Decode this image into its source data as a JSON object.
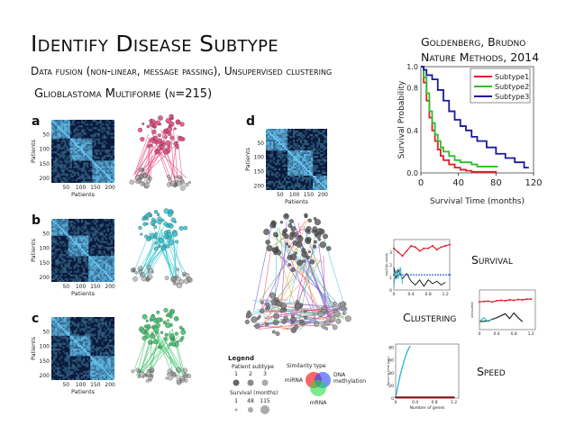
{
  "slide": {
    "title": "Identify Disease Subtype",
    "subtitle": "Data fusion (non-linear, message passing), Unsupervised clustering",
    "dataset": "Glioblastoma Multiforme (n=215)",
    "citation_line1": "Goldenberg, Brudno",
    "citation_line2": "Nature Methods, 2014",
    "label_survival": "Survival",
    "label_clustering": "Clustering",
    "label_speed": "Speed"
  },
  "panels": {
    "a": "a",
    "b": "b",
    "c": "c",
    "d": "d",
    "axis_label": "Patients",
    "yticks": [
      "50",
      "100",
      "150",
      "200"
    ],
    "xticks": [
      "50",
      "100",
      "150",
      "200"
    ]
  },
  "legend": {
    "title": "Legend",
    "patient_subtype": "Patient subtype",
    "subtype_values": [
      "1",
      "2",
      "3"
    ],
    "survival_months": "Survival (months)",
    "survival_values": [
      "1",
      "48",
      "115"
    ],
    "similarity_type": "Similarity type",
    "mirna": "miRNA",
    "dna_methylation_1": "DNA",
    "dna_methylation_2": "methylation",
    "mrna": "mRNA"
  },
  "colors": {
    "subtype1": "#e0202a",
    "subtype2": "#2bbf2b",
    "subtype3": "#1a1a9a",
    "network_a": "#e0457a",
    "network_b": "#2fc4d0",
    "network_c": "#3fc16a",
    "heatmap_bg": "#0b1a3a"
  },
  "chart_data": [
    {
      "type": "line",
      "title": "",
      "xlabel": "Survival Time (months)",
      "ylabel": "Survival Probability",
      "xlim": [
        0,
        120
      ],
      "ylim": [
        0,
        1.0
      ],
      "xticks": [
        "0",
        "40",
        "80",
        "120"
      ],
      "yticks": [
        "0.0",
        "0.4",
        "0.8",
        "1.0"
      ],
      "legend": "top-right",
      "series": [
        {
          "name": "Subtype1",
          "x": [
            0,
            3,
            6,
            9,
            12,
            15,
            18,
            21,
            24,
            30,
            36,
            42,
            48,
            54,
            60,
            70,
            80
          ],
          "y": [
            1.0,
            0.85,
            0.68,
            0.52,
            0.4,
            0.3,
            0.22,
            0.16,
            0.12,
            0.08,
            0.05,
            0.03,
            0.02,
            0.01,
            0.01,
            0.01,
            0.0
          ]
        },
        {
          "name": "Subtype2",
          "x": [
            0,
            3,
            6,
            9,
            12,
            15,
            18,
            21,
            24,
            30,
            36,
            42,
            48,
            54,
            60,
            70,
            82
          ],
          "y": [
            1.0,
            0.9,
            0.75,
            0.58,
            0.47,
            0.36,
            0.3,
            0.24,
            0.2,
            0.16,
            0.12,
            0.1,
            0.1,
            0.08,
            0.06,
            0.06,
            0.06
          ]
        },
        {
          "name": "Subtype3",
          "x": [
            0,
            3,
            6,
            12,
            18,
            24,
            30,
            36,
            42,
            48,
            54,
            60,
            70,
            80,
            90,
            100,
            110,
            115
          ],
          "y": [
            1.0,
            0.97,
            0.92,
            0.88,
            0.78,
            0.68,
            0.58,
            0.5,
            0.44,
            0.4,
            0.34,
            0.3,
            0.24,
            0.18,
            0.14,
            0.1,
            0.05,
            0.05
          ]
        }
      ]
    },
    {
      "type": "line",
      "title": "",
      "ylabel": "-log10(p-value)",
      "xticks": [
        "0",
        "0.4",
        "0.8",
        "1.2"
      ],
      "yticks": [
        "0",
        "1",
        "2",
        "3"
      ],
      "series": [
        {
          "x": [
            0.0,
            0.1,
            0.2,
            0.3,
            0.4,
            0.5,
            0.6,
            0.7,
            0.8,
            0.9,
            1.0,
            1.1,
            1.2,
            1.3
          ],
          "y": [
            3.3,
            3.0,
            2.7,
            3.1,
            3.5,
            3.4,
            3.1,
            3.3,
            3.3,
            3.5,
            3.2,
            3.4,
            3.5,
            3.6
          ]
        },
        {
          "x": [
            0.0,
            0.05,
            0.1,
            0.2,
            0.3,
            0.4,
            0.5,
            0.6,
            0.7,
            0.8,
            0.9,
            1.0,
            1.1,
            1.2
          ],
          "y": [
            1.8,
            0.9,
            1.6,
            0.9,
            1.3,
            0.7,
            0.4,
            0.8,
            0.3,
            0.8,
            0.5,
            0.7,
            0.4,
            0.6
          ]
        },
        {
          "x": [
            0.0,
            1.3
          ],
          "y": [
            1.2,
            1.2
          ]
        },
        {
          "x": [
            0.0,
            0.05,
            0.1,
            0.15,
            0.2
          ],
          "y": [
            0.3,
            1.6,
            0.9,
            1.8,
            0.5
          ]
        }
      ]
    },
    {
      "type": "line",
      "title": "",
      "ylabel": "silhouette",
      "xticks": [
        "0",
        "0.4",
        "0.8",
        "1.2"
      ],
      "series": [
        {
          "x": [
            0.0,
            0.1,
            0.2,
            0.3,
            0.4,
            0.5,
            0.6,
            0.7,
            0.8,
            0.9,
            1.0,
            1.1,
            1.2
          ],
          "y": [
            0.7,
            0.71,
            0.72,
            0.7,
            0.73,
            0.74,
            0.73,
            0.75,
            0.74,
            0.76,
            0.75,
            0.77,
            0.77
          ]
        },
        {
          "x": [
            0.0,
            0.2,
            0.4,
            0.6,
            0.7,
            0.8,
            0.9,
            1.0
          ],
          "y": [
            0.2,
            0.22,
            0.3,
            0.4,
            0.28,
            0.42,
            0.3,
            0.2
          ]
        },
        {
          "x": [
            0.0,
            0.1,
            0.2,
            0.3
          ],
          "y": [
            0.2,
            0.3,
            0.2,
            0.28
          ]
        }
      ]
    },
    {
      "type": "line",
      "title": "",
      "xlabel": "Number of genes",
      "ylabel": "Running time (sec)",
      "xticks": [
        "0",
        "0.4",
        "0.8",
        "1.2"
      ],
      "yticks": [
        "0",
        "20",
        "40",
        "60",
        "80"
      ],
      "series": [
        {
          "x": [
            0.0,
            0.05,
            0.1,
            0.15,
            0.2,
            0.25,
            0.3
          ],
          "y": [
            0,
            20,
            38,
            52,
            65,
            75,
            82
          ]
        },
        {
          "x": [
            0.0,
            0.2,
            0.4,
            0.6,
            0.8,
            1.0,
            1.2
          ],
          "y": [
            1,
            1,
            1,
            1,
            1,
            1,
            1
          ]
        }
      ]
    }
  ]
}
